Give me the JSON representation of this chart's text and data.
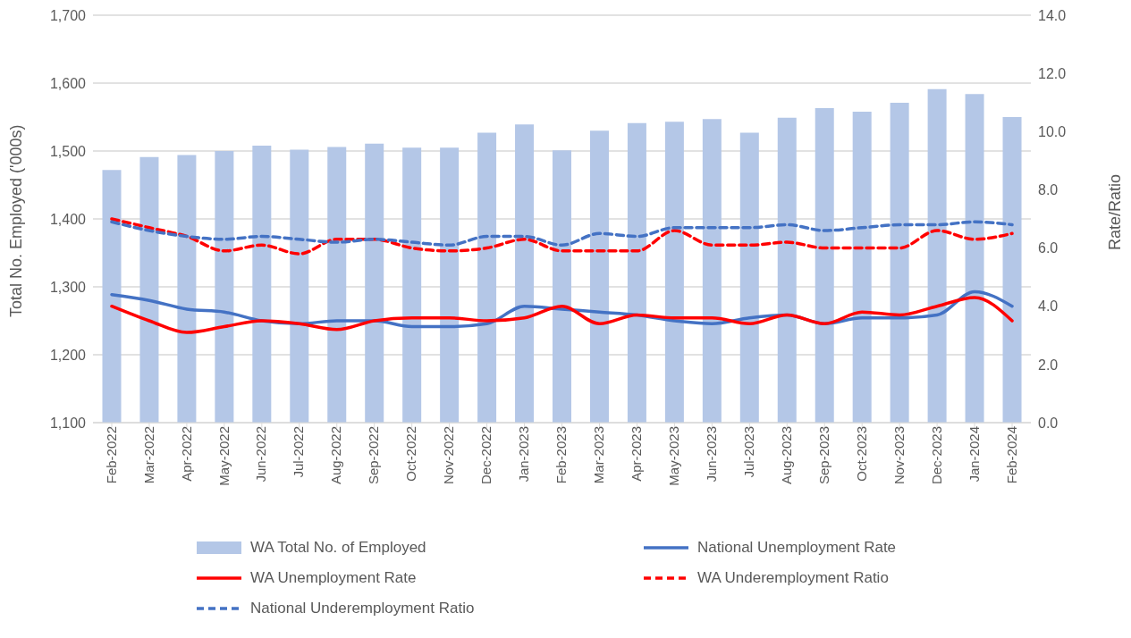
{
  "chart_data": {
    "type": "bar",
    "xlabel": null,
    "ylabel": "Total No. Employed ('000s)",
    "y2label": "Rate/Ratio",
    "categories": [
      "Feb-2022",
      "Mar-2022",
      "Apr-2022",
      "May-2022",
      "Jun-2022",
      "Jul-2022",
      "Aug-2022",
      "Sep-2022",
      "Oct-2022",
      "Nov-2022",
      "Dec-2022",
      "Jan-2023",
      "Feb-2023",
      "Mar-2023",
      "Apr-2023",
      "May-2023",
      "Jun-2023",
      "Jul-2023",
      "Aug-2023",
      "Sep-2023",
      "Oct-2023",
      "Nov-2023",
      "Dec-2023",
      "Jan-2024",
      "Feb-2024"
    ],
    "series": [
      {
        "name": "WA Total No. of Employed",
        "color": "#b4c7e7",
        "values": [
          1472,
          1491,
          1494,
          1500,
          1508,
          1502,
          1506,
          1511,
          1505,
          1505,
          1527,
          1539,
          1501,
          1530,
          1541,
          1543,
          1547,
          1527,
          1549,
          1563,
          1558,
          1571,
          1591,
          1584,
          1550
        ]
      },
      {
        "name": "National Unemployment Rate",
        "type": "line",
        "axis": "y2",
        "color": "#4472c4",
        "line_style": "solid",
        "values": [
          4.4,
          4.2,
          3.9,
          3.8,
          3.5,
          3.4,
          3.5,
          3.5,
          3.3,
          3.3,
          3.4,
          4.0,
          3.9,
          3.8,
          3.7,
          3.5,
          3.4,
          3.6,
          3.7,
          3.4,
          3.6,
          3.6,
          3.7,
          4.5,
          4.0
        ]
      },
      {
        "name": "WA Unemployment Rate",
        "type": "line",
        "axis": "y2",
        "color": "#ff0000",
        "line_style": "solid",
        "values": [
          4.0,
          3.5,
          3.1,
          3.3,
          3.5,
          3.4,
          3.2,
          3.5,
          3.6,
          3.6,
          3.5,
          3.6,
          4.0,
          3.4,
          3.7,
          3.6,
          3.6,
          3.4,
          3.7,
          3.4,
          3.8,
          3.7,
          4.0,
          4.3,
          3.5
        ]
      },
      {
        "name": "WA Underemployment Ratio",
        "type": "line",
        "axis": "y2",
        "color": "#ff0000",
        "line_style": "dashed",
        "values": [
          7.0,
          6.7,
          6.4,
          5.9,
          6.1,
          5.8,
          6.3,
          6.3,
          6.0,
          5.9,
          6.0,
          6.3,
          5.9,
          5.9,
          5.9,
          6.6,
          6.1,
          6.1,
          6.2,
          6.0,
          6.0,
          6.0,
          6.6,
          6.3,
          6.5
        ]
      },
      {
        "name": "National Underemployment Ratio",
        "type": "line",
        "axis": "y2",
        "color": "#4472c4",
        "line_style": "dashed",
        "values": [
          6.9,
          6.6,
          6.4,
          6.3,
          6.4,
          6.3,
          6.2,
          6.3,
          6.2,
          6.1,
          6.4,
          6.4,
          6.1,
          6.5,
          6.4,
          6.7,
          6.7,
          6.7,
          6.8,
          6.6,
          6.7,
          6.8,
          6.8,
          6.9,
          6.8
        ]
      }
    ],
    "ylim": [
      1100,
      1700
    ],
    "yticks": [
      {
        "value": 1100,
        "label": "1,100"
      },
      {
        "value": 1200,
        "label": "1,200"
      },
      {
        "value": 1300,
        "label": "1,300"
      },
      {
        "value": 1400,
        "label": "1,400"
      },
      {
        "value": 1500,
        "label": "1,500"
      },
      {
        "value": 1600,
        "label": "1,600"
      },
      {
        "value": 1700,
        "label": "1,700"
      }
    ],
    "y2lim": [
      0,
      14
    ],
    "y2ticks": [
      {
        "value": 0,
        "label": "0.0"
      },
      {
        "value": 2,
        "label": "2.0"
      },
      {
        "value": 4,
        "label": "4.0"
      },
      {
        "value": 6,
        "label": "6.0"
      },
      {
        "value": 8,
        "label": "8.0"
      },
      {
        "value": 10,
        "label": "10.0"
      },
      {
        "value": 12,
        "label": "12.0"
      },
      {
        "value": 14,
        "label": "14.0"
      }
    ],
    "grid": "y",
    "legend": "bottom",
    "marker": "none"
  }
}
